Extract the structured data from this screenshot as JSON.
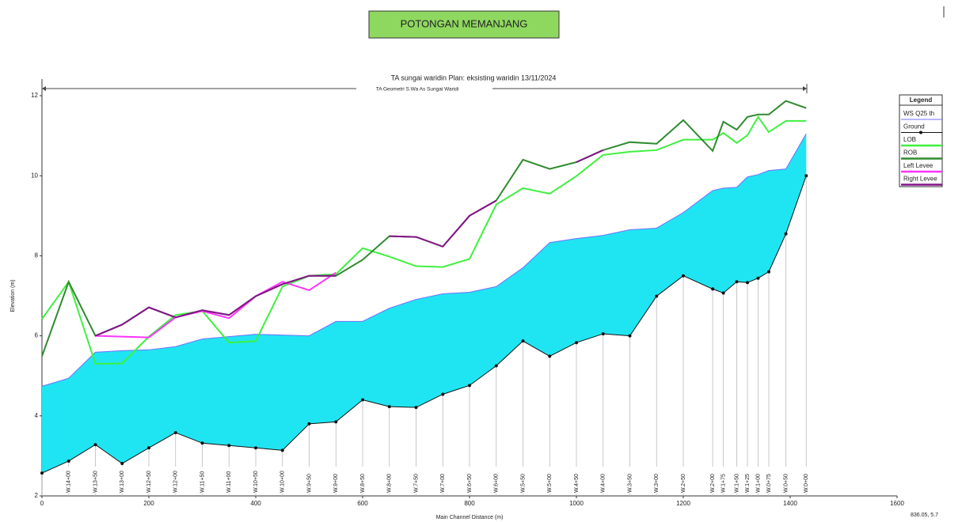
{
  "page_title": "POTONGAN MEMANJANG",
  "chart_data": {
    "type": "line",
    "title": "TA sungai waridin     Plan: eksisting waridin     13/11/2024",
    "subtitle": "TA Geometri S.Wa As Sungai Waridi",
    "x_label": "Main Channel Distance (m)",
    "y_label": "Elevation (m)",
    "cursor_readout": "836.05, 5.7",
    "legend_title": "Legend",
    "legend": "right",
    "xlim": [
      0,
      1600
    ],
    "xticks": [
      0,
      200,
      400,
      600,
      800,
      1000,
      1200,
      1400,
      1600
    ],
    "ylim": [
      2,
      12
    ],
    "yticks": [
      2,
      4,
      6,
      8,
      10,
      12
    ],
    "x": [
      0,
      50,
      100,
      150,
      200,
      250,
      300,
      350,
      400,
      450,
      500,
      550,
      600,
      650,
      700,
      750,
      800,
      850,
      900,
      950,
      1000,
      1050,
      1100,
      1150,
      1200,
      1255,
      1275,
      1300,
      1320,
      1340,
      1360,
      1392,
      1430
    ],
    "station_labels": [
      null,
      "W.14+00",
      "W.13+50",
      "W.13+00",
      "W.12+50",
      "W.12+00",
      "W.11+50",
      "W.11+00",
      "W.10+50",
      "W.10+00",
      "W.9+50",
      "W.9+00",
      "W.8+50",
      "W.8+00",
      "W.7+50",
      "W.7+00",
      "W.6+50",
      "W.6+00",
      "W.5+50",
      "W.5+00",
      "W.4+50",
      "W.4+00",
      "W.3+50",
      "W.3+00",
      "W.2+50",
      "W.2+00",
      "W.1+75",
      "W.1+50",
      "W.1+25",
      "W.1+00",
      "W.0+75",
      "W.0+50",
      "W.0+00"
    ],
    "series": [
      {
        "name": "WS  Q25 th",
        "color": "#6f6fff",
        "fill": "#1fe5f2",
        "values": [
          4.74,
          4.94,
          5.59,
          5.63,
          5.65,
          5.73,
          5.92,
          5.98,
          6.04,
          6.02,
          6.0,
          6.36,
          6.36,
          6.69,
          6.91,
          7.05,
          7.09,
          7.23,
          7.7,
          8.33,
          8.43,
          8.51,
          8.65,
          8.69,
          9.08,
          9.63,
          9.69,
          9.71,
          9.97,
          10.03,
          10.13,
          10.17,
          11.05
        ]
      },
      {
        "name": "Ground",
        "color": "#111111",
        "markers": true,
        "values": [
          2.57,
          2.87,
          3.28,
          2.81,
          3.2,
          3.58,
          3.32,
          3.26,
          3.2,
          3.14,
          3.8,
          3.85,
          4.4,
          4.23,
          4.21,
          4.54,
          4.76,
          5.25,
          5.87,
          5.49,
          5.83,
          6.05,
          6.0,
          6.99,
          7.5,
          7.17,
          7.07,
          7.35,
          7.33,
          7.44,
          7.6,
          8.55,
          10.0
        ]
      },
      {
        "name": "LOB",
        "color": "#3ff03f",
        "values": [
          6.42,
          7.35,
          5.3,
          5.31,
          5.98,
          6.52,
          6.62,
          5.83,
          5.87,
          7.23,
          7.5,
          7.54,
          8.19,
          7.98,
          7.74,
          7.72,
          7.92,
          9.28,
          9.69,
          9.55,
          9.99,
          10.52,
          10.6,
          10.64,
          10.9,
          10.9,
          11.07,
          10.82,
          11.01,
          11.47,
          11.09,
          11.37,
          11.37
        ]
      },
      {
        "name": "ROB",
        "color": "#2e8b2e",
        "values": [
          5.49,
          7.35,
          6.0,
          6.28,
          6.71,
          6.46,
          6.64,
          6.52,
          6.99,
          7.29,
          7.5,
          7.5,
          7.9,
          8.49,
          8.47,
          8.23,
          9.0,
          9.38,
          10.4,
          10.17,
          10.34,
          10.64,
          10.84,
          10.8,
          11.39,
          10.62,
          11.35,
          11.15,
          11.47,
          11.53,
          11.53,
          11.87,
          11.69
        ]
      },
      {
        "name": "Left Levee",
        "color": "#ff33ff",
        "values": [
          null,
          null,
          6.0,
          5.98,
          5.96,
          6.46,
          6.62,
          6.44,
          6.99,
          7.35,
          7.14,
          7.58,
          null,
          null,
          null,
          null,
          null,
          null,
          null,
          null,
          null,
          null,
          null,
          null,
          null,
          null,
          null,
          null,
          null,
          null,
          null,
          null,
          null
        ]
      },
      {
        "name": "Right Levee",
        "color": "#85128a",
        "values": [
          null,
          null,
          6.0,
          6.28,
          6.71,
          6.46,
          6.64,
          6.52,
          6.99,
          7.29,
          7.5,
          7.5,
          null,
          8.49,
          8.47,
          8.23,
          9.0,
          9.38,
          null,
          null,
          10.34,
          10.64,
          null,
          null,
          null,
          null,
          null,
          null,
          null,
          null,
          null,
          null,
          null
        ]
      }
    ]
  }
}
